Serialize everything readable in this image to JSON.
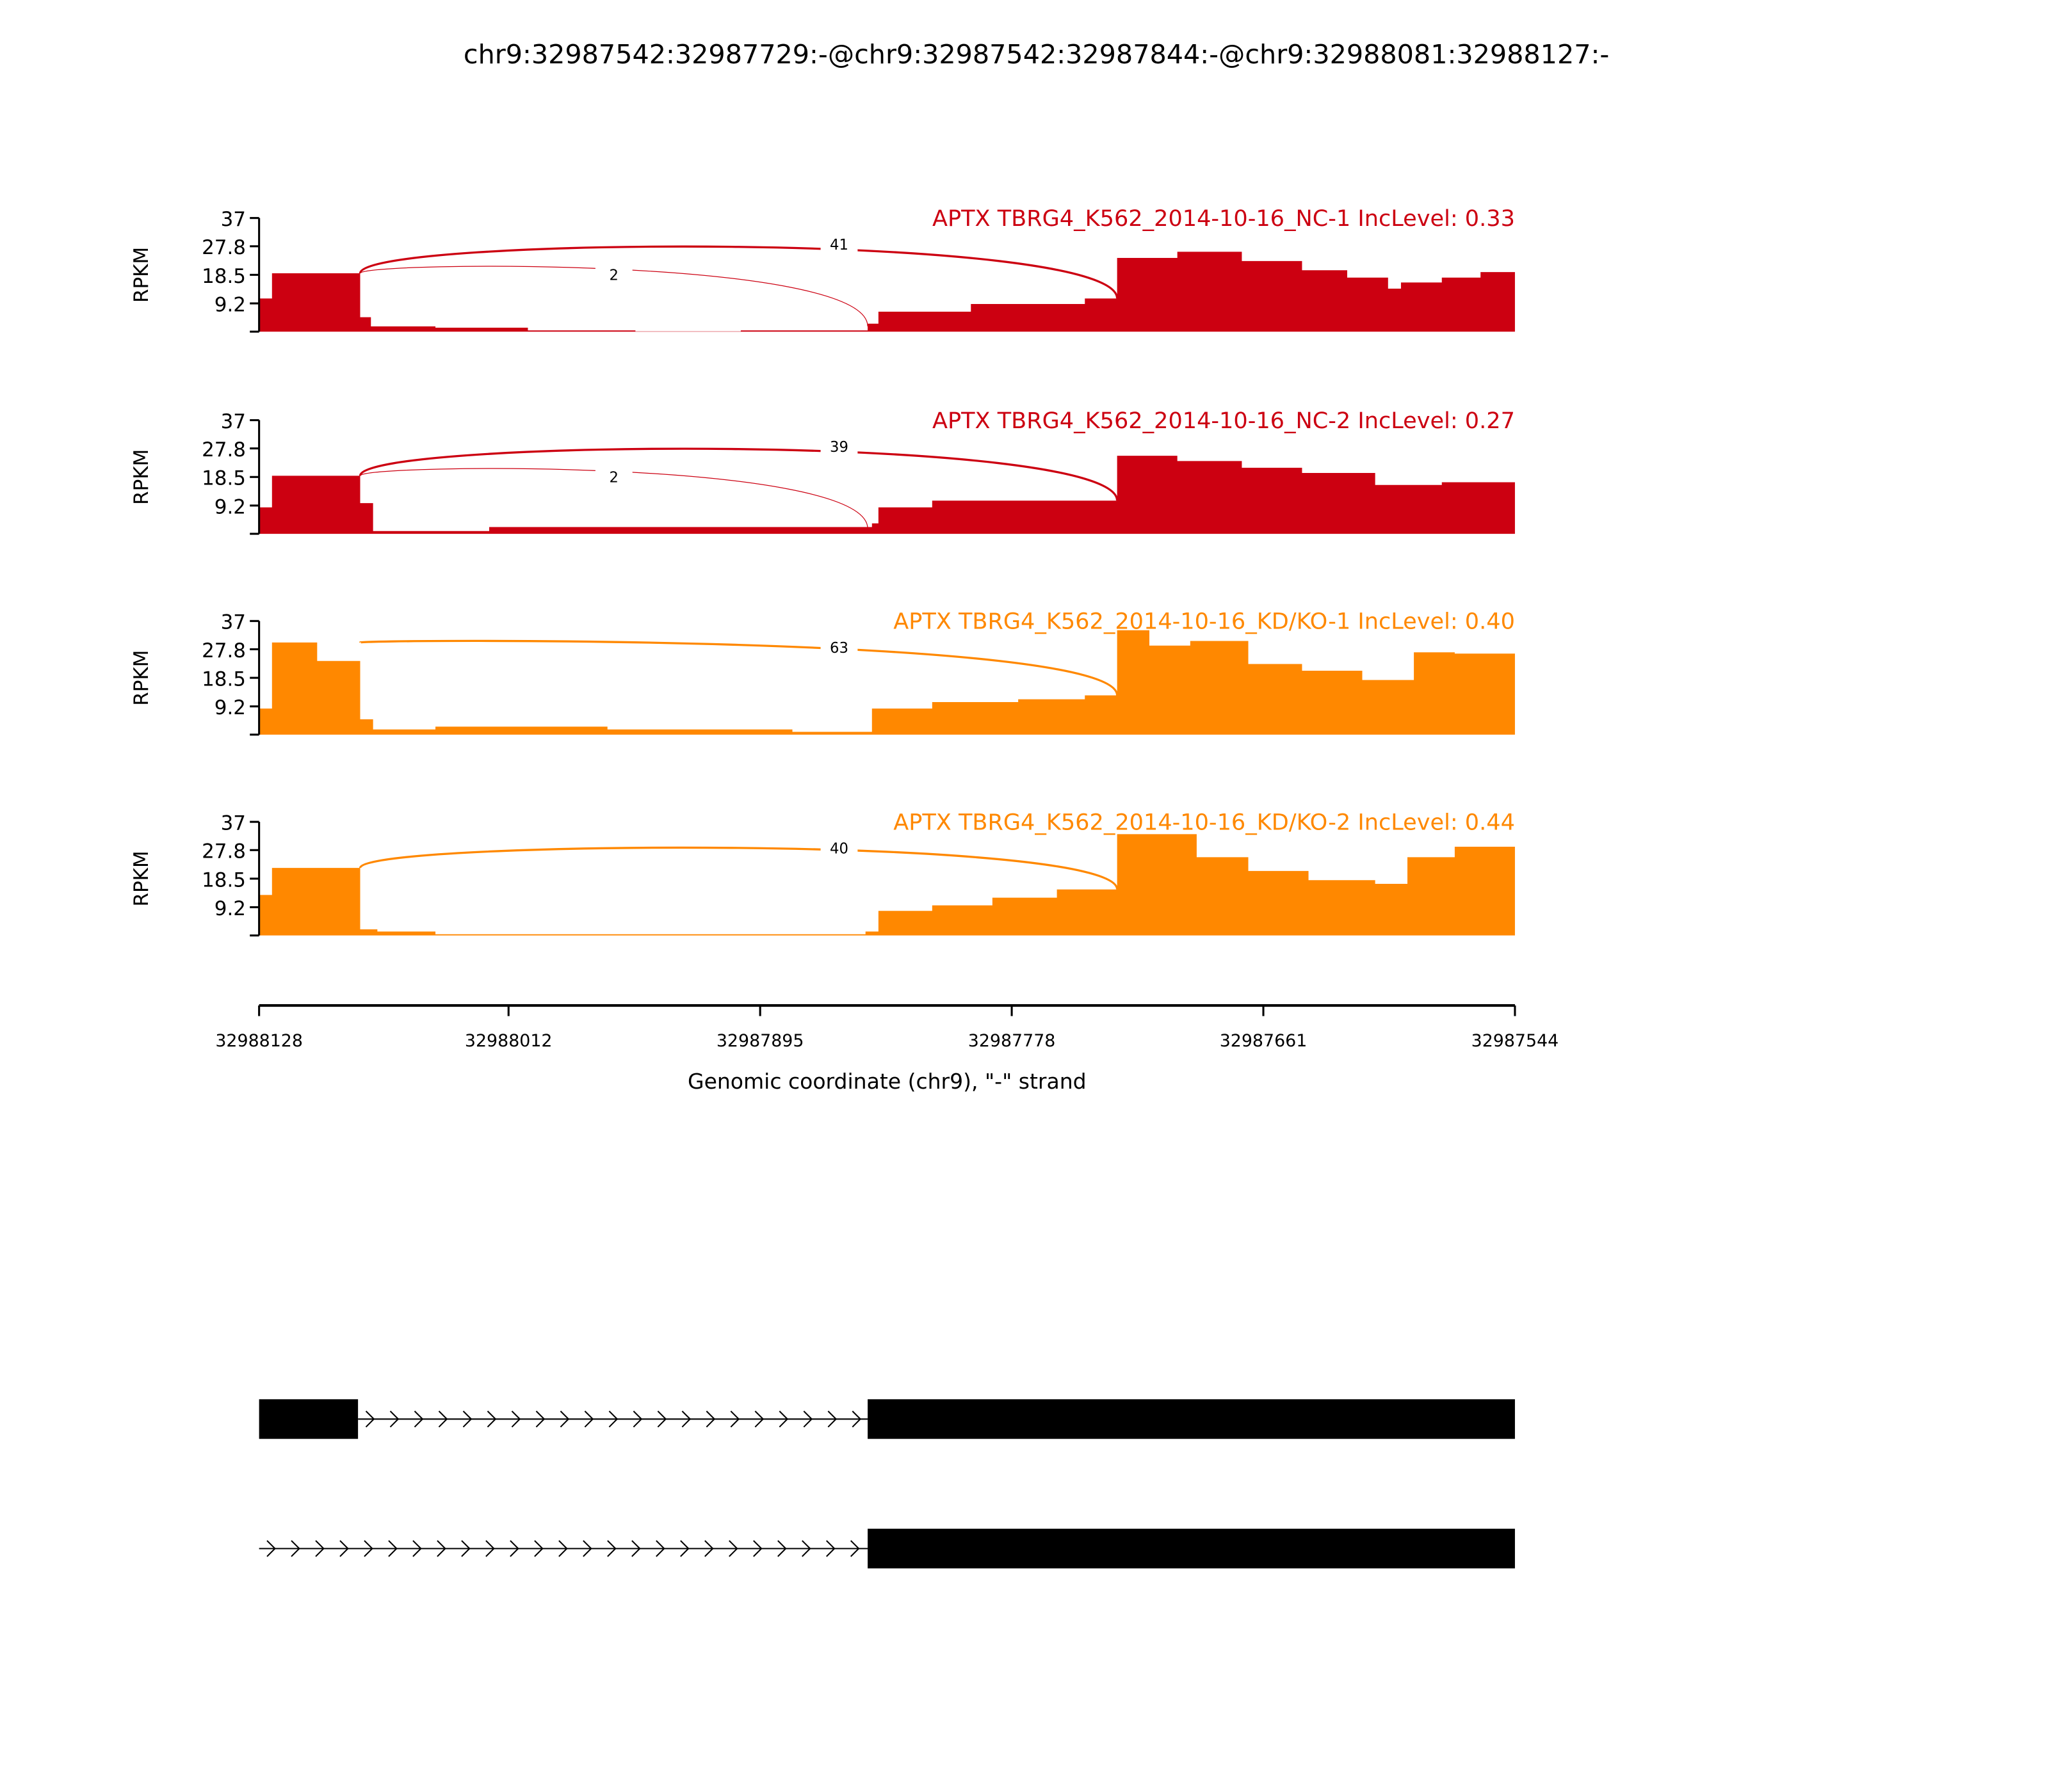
{
  "chart_data": {
    "type": "area",
    "title": "chr9:32987542:32987729:-@chr9:32987542:32987844:-@chr9:32988081:32988127:-",
    "xlabel": "Genomic coordinate (chr9), \"-\" strand",
    "ylabel": "RPKM",
    "xlim": [
      32988128,
      32987544
    ],
    "ylim": [
      0,
      37
    ],
    "x_ticks": [
      "32988128",
      "32988012",
      "32987895",
      "32987778",
      "32987661",
      "32987544"
    ],
    "y_ticks": [
      "37",
      "27.8",
      "18.5",
      "9.2"
    ],
    "panels": [
      {
        "label": "APTX TBRG4_K562_2014-10-16_NC-1 IncLevel: 0.33",
        "color": "#cc0011",
        "coverage": [
          [
            32988128,
            10.8
          ],
          [
            32988122,
            19
          ],
          [
            32988081,
            4.7
          ],
          [
            32988076,
            1.7
          ],
          [
            32988046,
            1.3
          ],
          [
            32988003,
            0.4
          ],
          [
            32987953,
            0.1
          ],
          [
            32987904,
            0.4
          ],
          [
            32987845,
            2.6
          ],
          [
            32987840,
            6.5
          ],
          [
            32987797,
            9
          ],
          [
            32987744,
            10.8
          ],
          [
            32987729,
            24
          ],
          [
            32987701,
            26
          ],
          [
            32987671,
            23
          ],
          [
            32987643,
            20
          ],
          [
            32987622,
            17.6
          ],
          [
            32987603,
            14
          ],
          [
            32987597,
            16
          ],
          [
            32987578,
            17.6
          ],
          [
            32987560,
            19.4
          ]
        ],
        "junctions": [
          {
            "from": 32988081,
            "to": 32987729,
            "count": "41"
          },
          {
            "from": 32988081,
            "to": 32987845,
            "count": "2"
          }
        ]
      },
      {
        "label": "APTX TBRG4_K562_2014-10-16_NC-2 IncLevel: 0.27",
        "color": "#cc0011",
        "coverage": [
          [
            32988128,
            8.6
          ],
          [
            32988122,
            18.9
          ],
          [
            32988081,
            10
          ],
          [
            32988075,
            0.9
          ],
          [
            32988021,
            2.2
          ],
          [
            32987843,
            3.4
          ],
          [
            32987840,
            8.6
          ],
          [
            32987815,
            10.8
          ],
          [
            32987729,
            25.4
          ],
          [
            32987701,
            23.7
          ],
          [
            32987671,
            21.5
          ],
          [
            32987643,
            19.8
          ],
          [
            32987609,
            15.9
          ],
          [
            32987578,
            16.8
          ]
        ],
        "junctions": [
          {
            "from": 32988081,
            "to": 32987729,
            "count": "39"
          },
          {
            "from": 32988081,
            "to": 32987845,
            "count": "2"
          }
        ]
      },
      {
        "label": "APTX TBRG4_K562_2014-10-16_KD/KO-1 IncLevel: 0.40",
        "color": "#ff8800",
        "coverage": [
          [
            32988128,
            8.5
          ],
          [
            32988122,
            30
          ],
          [
            32988101,
            24
          ],
          [
            32988081,
            5
          ],
          [
            32988075,
            1.7
          ],
          [
            32988046,
            2.6
          ],
          [
            32987966,
            1.7
          ],
          [
            32987880,
            0.9
          ],
          [
            32987843,
            8.5
          ],
          [
            32987815,
            10.6
          ],
          [
            32987775,
            11.5
          ],
          [
            32987744,
            12.8
          ],
          [
            32987729,
            34
          ],
          [
            32987714,
            29
          ],
          [
            32987695,
            30.5
          ],
          [
            32987668,
            23
          ],
          [
            32987643,
            20.8
          ],
          [
            32987615,
            17.8
          ],
          [
            32987591,
            26.8
          ],
          [
            32987572,
            26.4
          ]
        ],
        "junctions": [
          {
            "from": 32988081,
            "to": 32987729,
            "count": "63"
          }
        ]
      },
      {
        "label": "APTX TBRG4_K562_2014-10-16_KD/KO-2 IncLevel: 0.44",
        "color": "#ff8800",
        "coverage": [
          [
            32988128,
            13.2
          ],
          [
            32988122,
            22
          ],
          [
            32988081,
            2
          ],
          [
            32988073,
            1.3
          ],
          [
            32988046,
            0.4
          ],
          [
            32987846,
            1.3
          ],
          [
            32987840,
            8
          ],
          [
            32987815,
            9.8
          ],
          [
            32987787,
            12.3
          ],
          [
            32987757,
            15
          ],
          [
            32987729,
            33
          ],
          [
            32987692,
            25.5
          ],
          [
            32987668,
            21
          ],
          [
            32987640,
            18
          ],
          [
            32987609,
            16.8
          ],
          [
            32987594,
            25.5
          ],
          [
            32987572,
            28.9
          ]
        ],
        "junctions": [
          {
            "from": 32988081,
            "to": 32987729,
            "count": "40"
          }
        ]
      }
    ],
    "gene_models": [
      {
        "exons": [
          [
            32988128,
            32988082
          ],
          [
            32987845,
            32987544
          ]
        ],
        "intron": [
          32988082,
          32987845
        ],
        "strand": "-"
      },
      {
        "exons": [
          [
            32987845,
            32987544
          ]
        ],
        "intron": [
          32988128,
          32987845
        ],
        "strand": "-"
      }
    ]
  }
}
